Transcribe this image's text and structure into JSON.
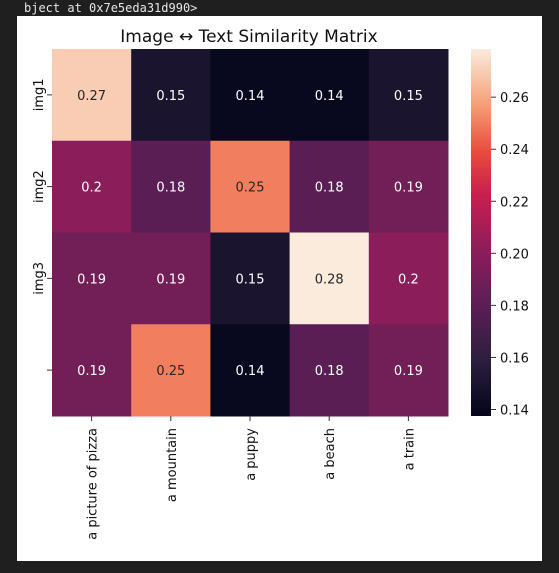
{
  "output": {
    "console_text": "bject at 0x7e5eda31d990>"
  },
  "chart_data": {
    "type": "heatmap",
    "title": "Image ↔ Text Similarity Matrix",
    "xlabel": "",
    "ylabel": "",
    "x_tick_labels": [
      "a picture of pizza",
      "a mountain",
      "a puppy",
      "a beach",
      "a train"
    ],
    "y_tick_labels": [
      "img1",
      "img2",
      "img3",
      ""
    ],
    "values": [
      [
        0.27,
        0.15,
        0.14,
        0.14,
        0.15
      ],
      [
        0.2,
        0.18,
        0.25,
        0.18,
        0.19
      ],
      [
        0.19,
        0.19,
        0.15,
        0.28,
        0.2
      ],
      [
        0.19,
        0.25,
        0.14,
        0.18,
        0.19
      ]
    ],
    "annot": true,
    "colormap": "rocket",
    "colorbar": {
      "min": 0.1375,
      "max": 0.2785,
      "ticks": [
        0.14,
        0.16,
        0.18,
        0.2,
        0.22,
        0.24,
        0.26
      ],
      "tick_labels": [
        "0.14",
        "0.16",
        "0.18",
        "0.20",
        "0.22",
        "0.24",
        "0.26"
      ]
    }
  }
}
